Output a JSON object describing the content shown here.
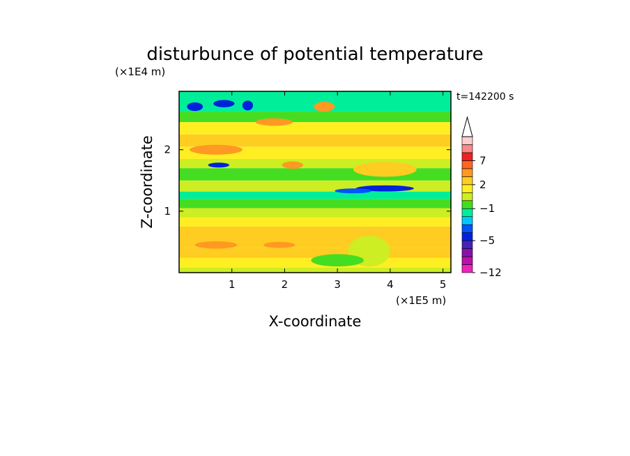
{
  "chart_data": {
    "type": "heatmap",
    "title": "disturbunce of potential temperature",
    "xlabel": "X-coordinate",
    "ylabel": "Z-coordinate",
    "x_unit": "(×1E5 m)",
    "y_unit": "(×1E4 m)",
    "time_label": "t=142200 s",
    "xlim": [
      0,
      5.15
    ],
    "ylim": [
      0,
      2.95
    ],
    "xticks": [
      "1",
      "2",
      "3",
      "4",
      "5"
    ],
    "xtick_values": [
      1,
      2,
      3,
      4,
      5
    ],
    "yticks": [
      "1",
      "2"
    ],
    "ytick_values": [
      1,
      2
    ],
    "colorbar": {
      "levels": [
        -12,
        -10,
        -8,
        -7,
        -5,
        -4,
        -3,
        -2,
        -1,
        0,
        1,
        2,
        3,
        5,
        7,
        8,
        9
      ],
      "colors": [
        "#ee22bb",
        "#bb11aa",
        "#8811aa",
        "#4422bb",
        "#0022dd",
        "#0055ff",
        "#00c8ff",
        "#00ee99",
        "#44dd22",
        "#ccee22",
        "#ffee22",
        "#ffcc22",
        "#ff9922",
        "#ff6622",
        "#ee2222",
        "#ff8888",
        "#ffcccc"
      ],
      "tick_labels": [
        {
          "label": "7",
          "value": 7
        },
        {
          "label": "2",
          "value": 2
        },
        {
          "label": "−1",
          "value": -1
        },
        {
          "label": "−5",
          "value": -5
        },
        {
          "label": "−12",
          "value": -12
        }
      ],
      "extend": "max"
    },
    "field_bands": [
      {
        "z": [
          0.0,
          0.08
        ],
        "value": 0.5
      },
      {
        "z": [
          0.08,
          0.24
        ],
        "value": 1.5
      },
      {
        "z": [
          0.24,
          0.4
        ],
        "value": 2.6
      },
      {
        "z": [
          0.4,
          0.55
        ],
        "value": 2.3
      },
      {
        "z": [
          0.55,
          0.75
        ],
        "value": 2.6
      },
      {
        "z": [
          0.75,
          0.9
        ],
        "value": 1.4
      },
      {
        "z": [
          0.9,
          1.05
        ],
        "value": 0.2
      },
      {
        "z": [
          1.05,
          1.2
        ],
        "value": -0.8
      },
      {
        "z": [
          1.2,
          1.32
        ],
        "value": -1.5
      },
      {
        "z": [
          1.32,
          1.5
        ],
        "value": 0.3
      },
      {
        "z": [
          1.5,
          1.7
        ],
        "value": -0.7
      },
      {
        "z": [
          1.7,
          1.85
        ],
        "value": 0.4
      },
      {
        "z": [
          1.85,
          2.05
        ],
        "value": 1.6
      },
      {
        "z": [
          2.05,
          2.25
        ],
        "value": 2.7
      },
      {
        "z": [
          2.25,
          2.45
        ],
        "value": 1.5
      },
      {
        "z": [
          2.45,
          2.62
        ],
        "value": -0.3
      },
      {
        "z": [
          2.62,
          2.95
        ],
        "value": -1.2
      }
    ],
    "features": [
      {
        "kind": "blob",
        "x": 0.3,
        "z": 2.7,
        "rx": 0.15,
        "rz": 0.07,
        "value": -5
      },
      {
        "kind": "blob",
        "x": 0.85,
        "z": 2.75,
        "rx": 0.2,
        "rz": 0.06,
        "value": -5
      },
      {
        "kind": "blob",
        "x": 1.3,
        "z": 2.72,
        "rx": 0.1,
        "rz": 0.08,
        "value": -5
      },
      {
        "kind": "blob",
        "x": 0.7,
        "z": 2.0,
        "rx": 0.5,
        "rz": 0.08,
        "value": 3
      },
      {
        "kind": "blob",
        "x": 1.8,
        "z": 2.45,
        "rx": 0.35,
        "rz": 0.06,
        "value": 3
      },
      {
        "kind": "blob",
        "x": 2.75,
        "z": 2.7,
        "rx": 0.2,
        "rz": 0.08,
        "value": 3
      },
      {
        "kind": "blob",
        "x": 0.75,
        "z": 1.75,
        "rx": 0.2,
        "rz": 0.04,
        "value": -5
      },
      {
        "kind": "blob",
        "x": 2.15,
        "z": 1.75,
        "rx": 0.2,
        "rz": 0.06,
        "value": 3
      },
      {
        "kind": "blob",
        "x": 3.9,
        "z": 1.68,
        "rx": 0.6,
        "rz": 0.12,
        "value": 2
      },
      {
        "kind": "blob",
        "x": 3.9,
        "z": 1.37,
        "rx": 0.55,
        "rz": 0.05,
        "value": -5
      },
      {
        "kind": "blob",
        "x": 3.3,
        "z": 1.33,
        "rx": 0.35,
        "rz": 0.04,
        "value": -4
      },
      {
        "kind": "blob",
        "x": 0.7,
        "z": 0.45,
        "rx": 0.4,
        "rz": 0.06,
        "value": 3
      },
      {
        "kind": "blob",
        "x": 1.9,
        "z": 0.45,
        "rx": 0.3,
        "rz": 0.05,
        "value": 3
      },
      {
        "kind": "blob",
        "x": 3.6,
        "z": 0.35,
        "rx": 0.4,
        "rz": 0.25,
        "value": 0
      },
      {
        "kind": "blob",
        "x": 3.0,
        "z": 0.2,
        "rx": 0.5,
        "rz": 0.1,
        "value": -0.5
      }
    ]
  }
}
